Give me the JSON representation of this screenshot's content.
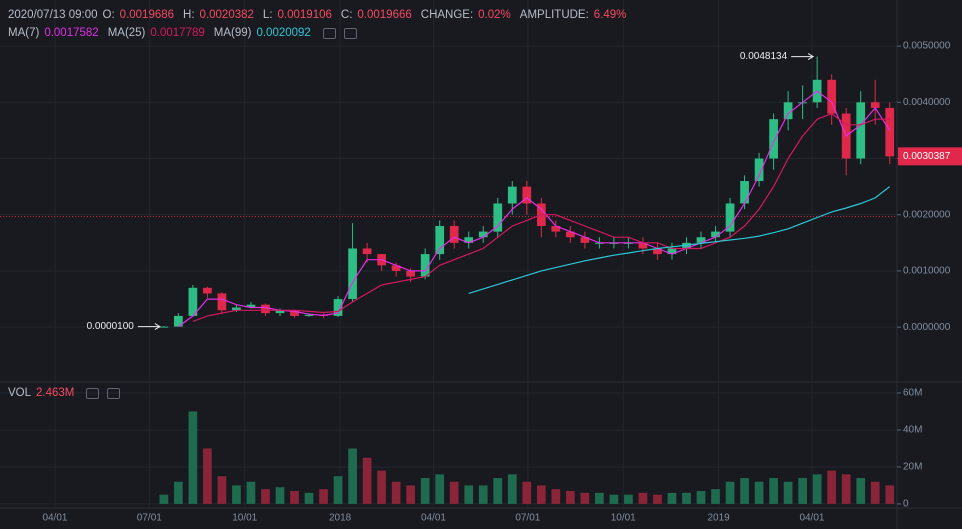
{
  "chart_data": {
    "type": "candlestick",
    "info": {
      "time": "2020/07/13 09:00",
      "fields": [
        {
          "label": "O:",
          "value": "0.0019686"
        },
        {
          "label": "H:",
          "value": "0.0020382"
        },
        {
          "label": "L:",
          "value": "0.0019106"
        },
        {
          "label": "C:",
          "value": "0.0019666"
        },
        {
          "label": "CHANGE:",
          "value": "0.02%"
        },
        {
          "label": "AMPLITUDE:",
          "value": "6.49%"
        }
      ]
    },
    "up_color": "#2ebd85",
    "down_color": "#e0294a",
    "x": [
      105,
      119,
      133,
      147,
      161,
      175,
      189,
      203,
      217,
      231,
      245,
      259,
      273,
      287,
      301,
      315,
      329,
      343,
      357,
      371,
      385,
      399,
      413,
      427,
      441,
      455,
      469,
      483,
      497,
      511,
      525,
      539,
      553,
      567,
      581,
      595,
      609,
      623,
      637,
      651,
      665,
      679,
      693,
      707,
      721,
      735,
      749,
      763,
      777,
      791,
      805
    ],
    "open": [
      1e-05,
      1e-05,
      0.0002,
      0.0007,
      0.0006,
      0.0003,
      0.00035,
      0.0004,
      0.00025,
      0.0003,
      0.0002,
      0.00022,
      0.0002,
      0.0005,
      0.0014,
      0.0013,
      0.0011,
      0.001,
      0.0009,
      0.0013,
      0.0018,
      0.0015,
      0.0016,
      0.0017,
      0.0022,
      0.0025,
      0.0022,
      0.0018,
      0.0017,
      0.0016,
      0.0015,
      0.0015,
      0.0015,
      0.0015,
      0.0014,
      0.0013,
      0.0014,
      0.0015,
      0.0016,
      0.0017,
      0.0022,
      0.0026,
      0.003,
      0.0037,
      0.004,
      0.004,
      0.0044,
      0.0038,
      0.003,
      0.004,
      0.0039
    ],
    "high": [
      2e-05,
      0.00025,
      0.00075,
      0.00072,
      0.00062,
      0.0004,
      0.00045,
      0.00042,
      0.00033,
      0.00031,
      0.00025,
      0.00024,
      0.00055,
      0.00185,
      0.0015,
      0.0013,
      0.00115,
      0.00105,
      0.0014,
      0.0019,
      0.0019,
      0.0017,
      0.0018,
      0.0023,
      0.0026,
      0.0026,
      0.0023,
      0.0019,
      0.0018,
      0.0017,
      0.0016,
      0.0016,
      0.0016,
      0.0016,
      0.0015,
      0.0015,
      0.0016,
      0.0017,
      0.0018,
      0.0023,
      0.0027,
      0.0031,
      0.0038,
      0.0042,
      0.0043,
      0.0048134,
      0.0045,
      0.0039,
      0.0042,
      0.0044,
      0.004
    ],
    "low": [
      1e-05,
      1e-05,
      0.00018,
      0.00052,
      0.00025,
      0.00027,
      0.00033,
      0.0002,
      0.0002,
      0.00017,
      0.00018,
      0.00016,
      0.00018,
      0.00045,
      0.00115,
      0.001,
      0.0009,
      0.0008,
      0.00085,
      0.0012,
      0.0014,
      0.0014,
      0.0015,
      0.0016,
      0.002,
      0.002,
      0.0016,
      0.0016,
      0.0015,
      0.0014,
      0.0014,
      0.0014,
      0.0014,
      0.0013,
      0.0012,
      0.0012,
      0.0013,
      0.0014,
      0.0015,
      0.0016,
      0.0021,
      0.0025,
      0.0028,
      0.0035,
      0.0037,
      0.0039,
      0.0036,
      0.0027,
      0.0029,
      0.0036,
      0.0029
    ],
    "close": [
      1e-05,
      0.0002,
      0.0007,
      0.0006,
      0.0003,
      0.00035,
      0.0004,
      0.00025,
      0.0003,
      0.0002,
      0.00022,
      0.0002,
      0.0005,
      0.0014,
      0.0013,
      0.0011,
      0.001,
      0.0009,
      0.0013,
      0.0018,
      0.0015,
      0.0016,
      0.0017,
      0.0022,
      0.0025,
      0.0022,
      0.0018,
      0.0017,
      0.0016,
      0.0015,
      0.0015,
      0.0015,
      0.0015,
      0.0014,
      0.0013,
      0.0014,
      0.0015,
      0.0016,
      0.0017,
      0.0022,
      0.0026,
      0.003,
      0.0037,
      0.004,
      0.004,
      0.0044,
      0.0038,
      0.003,
      0.004,
      0.0039,
      0.0030387
    ],
    "series": [
      {
        "name": "MA(7)",
        "legend_value": "0.0017582",
        "color": "#e62ee6",
        "values": [
          null,
          1e-05,
          0.0002,
          0.0005,
          0.0005,
          0.0004,
          0.00035,
          0.00035,
          0.0003,
          0.00028,
          0.00023,
          0.00021,
          0.00025,
          0.0008,
          0.0012,
          0.0012,
          0.0011,
          0.001,
          0.001,
          0.0014,
          0.0016,
          0.0015,
          0.0016,
          0.0018,
          0.0021,
          0.0023,
          0.0021,
          0.0018,
          0.0017,
          0.0016,
          0.0015,
          0.0015,
          0.0015,
          0.0015,
          0.0014,
          0.0013,
          0.0014,
          0.0015,
          0.0016,
          0.0018,
          0.0022,
          0.0027,
          0.0033,
          0.0038,
          0.004,
          0.0042,
          0.004,
          0.0034,
          0.0036,
          0.0039,
          0.0035
        ]
      },
      {
        "name": "MA(25)",
        "legend_value": "0.0017789",
        "color": "#d6195f",
        "values": [
          null,
          null,
          0.0001,
          0.0002,
          0.00025,
          0.0003,
          0.0003,
          0.0003,
          0.0003,
          0.0003,
          0.00028,
          0.00026,
          0.00028,
          0.00045,
          0.0006,
          0.00075,
          0.0008,
          0.00085,
          0.0009,
          0.0011,
          0.0012,
          0.0013,
          0.0014,
          0.0016,
          0.0018,
          0.0019,
          0.002,
          0.002,
          0.0019,
          0.0018,
          0.0017,
          0.0016,
          0.0016,
          0.0015,
          0.0015,
          0.0014,
          0.0014,
          0.0014,
          0.0015,
          0.0016,
          0.0018,
          0.0021,
          0.0025,
          0.003,
          0.0034,
          0.0037,
          0.0038,
          0.0036,
          0.0036,
          0.0037,
          0.0037
        ]
      },
      {
        "name": "MA(99)",
        "legend_value": "0.0020092",
        "color": "#2ec7d6",
        "values": [
          null,
          null,
          null,
          null,
          null,
          null,
          null,
          null,
          null,
          null,
          null,
          null,
          null,
          null,
          null,
          null,
          null,
          null,
          null,
          null,
          null,
          0.0006,
          0.00068,
          0.00076,
          0.00084,
          0.00092,
          0.001,
          0.00106,
          0.00112,
          0.00118,
          0.00123,
          0.00128,
          0.00132,
          0.00136,
          0.0014,
          0.00143,
          0.00146,
          0.00149,
          0.00152,
          0.00155,
          0.00158,
          0.00162,
          0.00168,
          0.00175,
          0.00185,
          0.00195,
          0.00205,
          0.00212,
          0.0022,
          0.0023,
          0.0025
        ]
      }
    ],
    "xlim": [
      -53,
      812
    ],
    "xticks": [
      {
        "value": 0,
        "label": "04/01"
      },
      {
        "value": 91,
        "label": "07/01"
      },
      {
        "value": 183,
        "label": "10/01"
      },
      {
        "value": 275,
        "label": "2018"
      },
      {
        "value": 365,
        "label": "04/01"
      },
      {
        "value": 456,
        "label": "07/01"
      },
      {
        "value": 548,
        "label": "10/01"
      },
      {
        "value": 640,
        "label": "2019"
      },
      {
        "value": 730,
        "label": "04/01"
      }
    ],
    "ylim": [
      -0.00094,
      0.00582
    ],
    "yticks": [
      {
        "value": 0,
        "label": "0.0000000"
      },
      {
        "value": 0.001,
        "label": "0.0010000"
      },
      {
        "value": 0.002,
        "label": "0.0020000"
      },
      {
        "value": 0.003,
        "label": "0.0030000"
      },
      {
        "value": 0.004,
        "label": "0.0040000"
      },
      {
        "value": 0.005,
        "label": "0.0050000"
      }
    ],
    "price_line": 0.0019666,
    "last_price": 0.0030387,
    "annotations": [
      {
        "x": 735,
        "value": 0.0048134
      },
      {
        "x": 105,
        "value": {
          "value": 1e-05,
          "label": "0.0000100"
        }
      }
    ],
    "volume": {
      "name": "VOL",
      "legend_value": "2.463M",
      "up_color": "#1f6b50",
      "down_color": "#8a2438",
      "values": [
        5000000,
        12000000,
        50000000,
        30000000,
        15000000,
        10000000,
        12000000,
        8000000,
        9000000,
        7000000,
        6000000,
        8000000,
        15000000,
        30000000,
        25000000,
        18000000,
        12000000,
        10000000,
        14000000,
        16000000,
        12000000,
        10000000,
        10000000,
        14000000,
        16000000,
        12000000,
        10000000,
        8000000,
        7000000,
        6000000,
        6000000,
        5000000,
        5000000,
        6000000,
        5000000,
        6000000,
        6000000,
        7000000,
        8000000,
        12000000,
        14000000,
        12000000,
        14000000,
        12000000,
        14000000,
        16000000,
        18000000,
        16000000,
        14000000,
        12000000,
        10000000
      ],
      "ylim": [
        -2200000,
        65400000
      ],
      "yticks": [
        {
          "value": 0,
          "label": "0"
        },
        {
          "value": 20000000,
          "label": "20M"
        },
        {
          "value": 40000000,
          "label": "40M"
        },
        {
          "value": 60000000,
          "label": "60M"
        }
      ]
    }
  }
}
